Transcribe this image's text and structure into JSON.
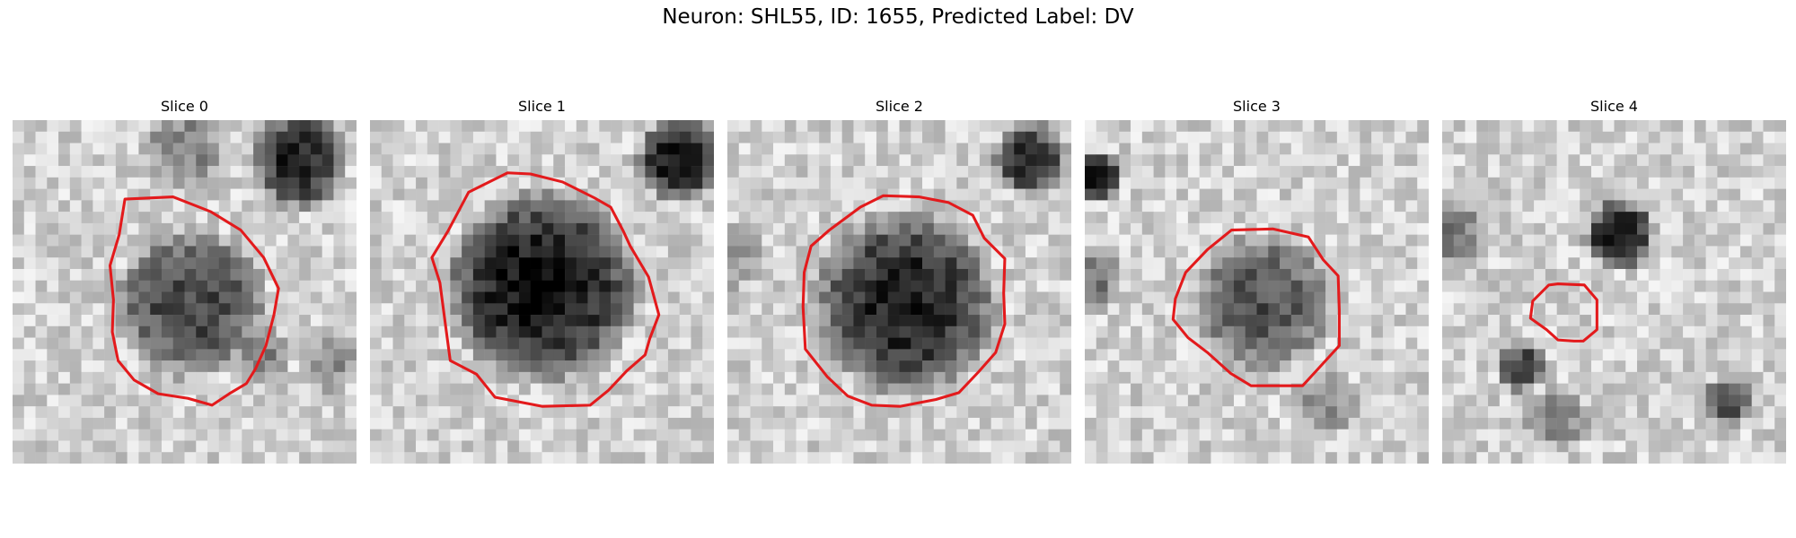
{
  "figure": {
    "title": "Neuron: SHL55, ID: 1655, Predicted Label: DV"
  },
  "panels": [
    {
      "title": "Slice 0"
    },
    {
      "title": "Slice 1"
    },
    {
      "title": "Slice 2"
    },
    {
      "title": "Slice 3"
    },
    {
      "title": "Slice 4"
    }
  ],
  "colors": {
    "contour": "#e31a1c",
    "background": "#ffffff"
  },
  "image_grid": {
    "rows": 30,
    "cols": 30,
    "colormap": "grayscale"
  }
}
